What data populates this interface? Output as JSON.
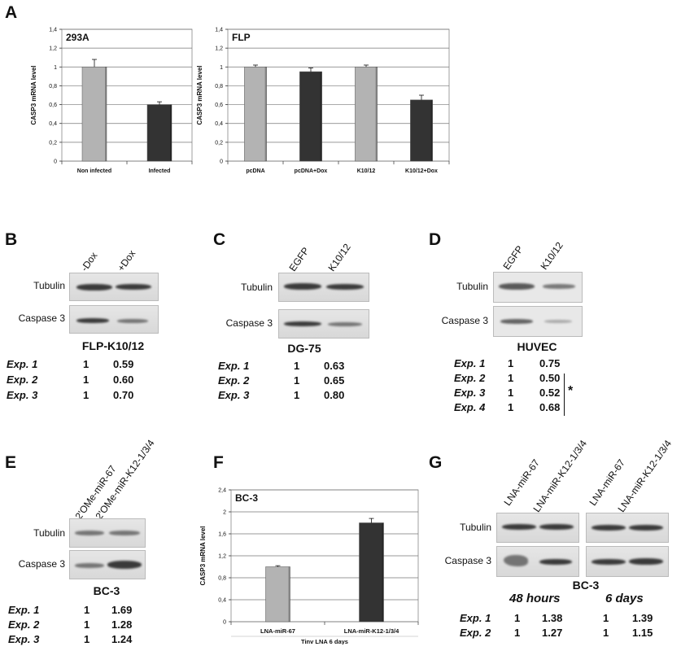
{
  "panels": {
    "A": "A",
    "B": "B",
    "C": "C",
    "D": "D",
    "E": "E",
    "F": "F",
    "G": "G"
  },
  "chart_data": [
    {
      "type": "bar",
      "panel": "A",
      "title": "293A",
      "ylabel": "CASP3 mRNA level",
      "ylim": [
        0,
        1.4
      ],
      "yticks": [
        "0",
        "0,2",
        "0,4",
        "0,6",
        "0,8",
        "1",
        "1,2",
        "1,4"
      ],
      "categories": [
        "Non infected",
        "Infected"
      ],
      "values": [
        1.0,
        0.6
      ],
      "errors": [
        0.08,
        0.03
      ],
      "colors": [
        "#b3b3b3",
        "#333333"
      ],
      "grid": true
    },
    {
      "type": "bar",
      "panel": "A",
      "title": "FLP",
      "ylabel": "CASP3 mRNA level",
      "ylim": [
        0,
        1.4
      ],
      "yticks": [
        "0",
        "0,2",
        "0,4",
        "0,6",
        "0,8",
        "1",
        "1,2",
        "1,4"
      ],
      "categories": [
        "pcDNA",
        "pcDNA+Dox",
        "K10/12",
        "K10/12+Dox"
      ],
      "values": [
        1.0,
        0.95,
        1.0,
        0.65
      ],
      "errors": [
        0.02,
        0.04,
        0.02,
        0.05
      ],
      "colors": [
        "#b3b3b3",
        "#333333",
        "#b3b3b3",
        "#333333"
      ],
      "grid": true
    },
    {
      "type": "bar",
      "panel": "F",
      "title": "BC-3",
      "ylabel": "CASP3 mRNA level",
      "xlabel": "Tinv LNA 6 days",
      "ylim": [
        0,
        2.4
      ],
      "yticks": [
        "0",
        "0,4",
        "0,8",
        "1,2",
        "1,6",
        "2",
        "2,4"
      ],
      "categories": [
        "LNA-miR-67",
        "LNA-miR-K12-1/3/4"
      ],
      "values": [
        1.0,
        1.8
      ],
      "errors": [
        0.02,
        0.08
      ],
      "colors": [
        "#b3b3b3",
        "#333333"
      ],
      "grid": true
    }
  ],
  "blots": {
    "B": {
      "lanes": [
        "-Dox",
        "+Dox"
      ],
      "rows": [
        "Tubulin",
        "Caspase 3"
      ],
      "cell": "FLP-K10/12",
      "quant": [
        {
          "exp": "Exp. 1",
          "ctrl": "1",
          "val": "0.59"
        },
        {
          "exp": "Exp. 2",
          "ctrl": "1",
          "val": "0.60"
        },
        {
          "exp": "Exp. 3",
          "ctrl": "1",
          "val": "0.70"
        }
      ]
    },
    "C": {
      "lanes": [
        "EGFP",
        "K10/12"
      ],
      "rows": [
        "Tubulin",
        "Caspase 3"
      ],
      "cell": "DG-75",
      "quant": [
        {
          "exp": "Exp. 1",
          "ctrl": "1",
          "val": "0.63"
        },
        {
          "exp": "Exp. 2",
          "ctrl": "1",
          "val": "0.65"
        },
        {
          "exp": "Exp. 3",
          "ctrl": "1",
          "val": "0.80"
        }
      ]
    },
    "D": {
      "lanes": [
        "EGFP",
        "K10/12"
      ],
      "rows": [
        "Tubulin",
        "Caspase 3"
      ],
      "cell": "HUVEC",
      "quant": [
        {
          "exp": "Exp. 1",
          "ctrl": "1",
          "val": "0.75"
        },
        {
          "exp": "Exp. 2",
          "ctrl": "1",
          "val": "0.50"
        },
        {
          "exp": "Exp. 3",
          "ctrl": "1",
          "val": "0.52"
        },
        {
          "exp": "Exp. 4",
          "ctrl": "1",
          "val": "0.68"
        }
      ],
      "significance": "*"
    },
    "E": {
      "lanes": [
        "2'OMe-miR-67",
        "2'OMe-miR-K12-1/3/4"
      ],
      "rows": [
        "Tubulin",
        "Caspase 3"
      ],
      "cell": "BC-3",
      "quant": [
        {
          "exp": "Exp. 1",
          "ctrl": "1",
          "val": "1.69"
        },
        {
          "exp": "Exp. 2",
          "ctrl": "1",
          "val": "1.28"
        },
        {
          "exp": "Exp. 3",
          "ctrl": "1",
          "val": "1.24"
        }
      ]
    },
    "G": {
      "lanes": [
        "LNA-miR-67",
        "LNA-miR-K12-1/3/4"
      ],
      "rows": [
        "Tubulin",
        "Caspase 3"
      ],
      "cell": "BC-3",
      "timepoints": [
        "48 hours",
        "6 days"
      ],
      "quant": [
        {
          "exp": "Exp. 1",
          "ctrl48": "1",
          "val48": "1.38",
          "ctrl6": "1",
          "val6": "1.39"
        },
        {
          "exp": "Exp. 2",
          "ctrl48": "1",
          "val48": "1.27",
          "ctrl6": "1",
          "val6": "1.15"
        }
      ]
    }
  }
}
